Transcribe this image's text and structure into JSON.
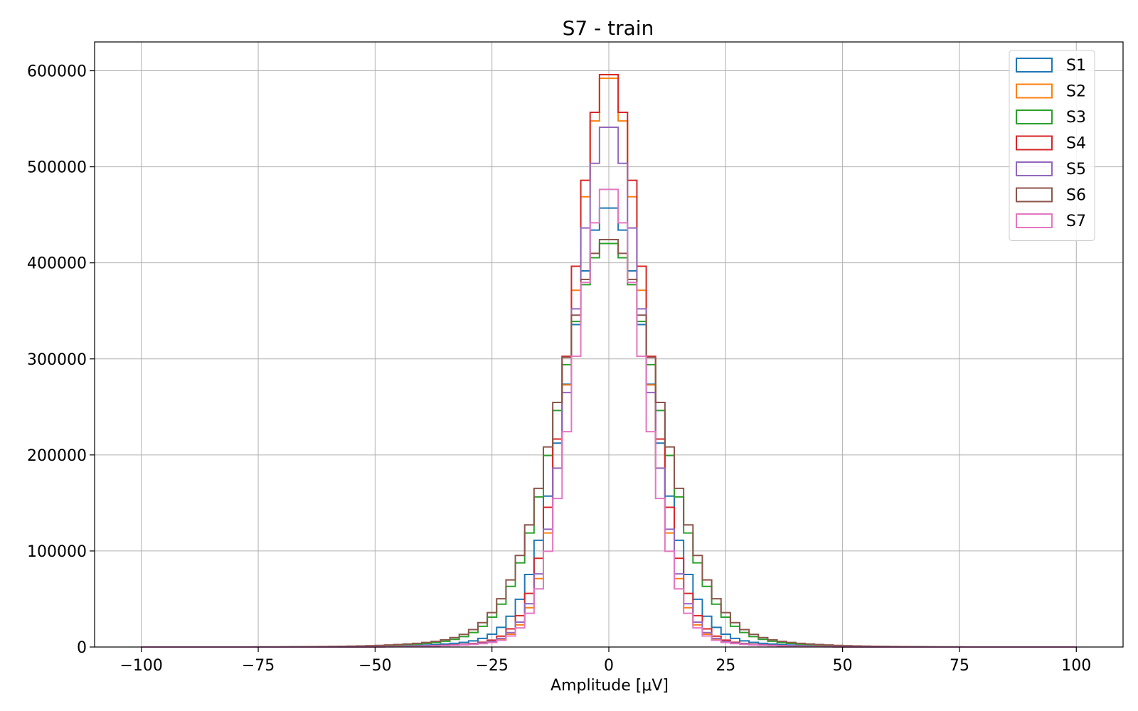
{
  "chart_data": {
    "type": "histogram",
    "title": "S7 - train",
    "xlabel": "Amplitude [μV]",
    "ylabel": "",
    "xlim": [
      -110,
      110
    ],
    "ylim": [
      0,
      630000
    ],
    "bin_width": 2,
    "x_range": [
      -100,
      100
    ],
    "xticks": [
      -100,
      -75,
      -50,
      -25,
      0,
      25,
      50,
      75,
      100
    ],
    "xtick_labels": [
      "−100",
      "−75",
      "−50",
      "−25",
      "0",
      "25",
      "50",
      "75",
      "100"
    ],
    "yticks": [
      0,
      100000,
      200000,
      300000,
      400000,
      500000,
      600000
    ],
    "ytick_labels": [
      "0",
      "100000",
      "200000",
      "300000",
      "400000",
      "500000",
      "600000"
    ],
    "grid": true,
    "legend_position": "top-right",
    "series": [
      {
        "name": "S1",
        "color": "#1f77b4",
        "peak": 460000,
        "sigma": 8.7,
        "tail_amp": 0.03,
        "tail_sigma": 20
      },
      {
        "name": "S2",
        "color": "#ff7f0e",
        "peak": 598000,
        "sigma": 7.1,
        "tail_amp": 0.02,
        "tail_sigma": 18
      },
      {
        "name": "S3",
        "color": "#2ca02c",
        "peak": 422000,
        "sigma": 10.4,
        "tail_amp": 0.04,
        "tail_sigma": 22
      },
      {
        "name": "S4",
        "color": "#d62728",
        "peak": 601000,
        "sigma": 7.6,
        "tail_amp": 0.02,
        "tail_sigma": 18
      },
      {
        "name": "S5",
        "color": "#9467bd",
        "peak": 546000,
        "sigma": 7.4,
        "tail_amp": 0.02,
        "tail_sigma": 18
      },
      {
        "name": "S6",
        "color": "#8c564b",
        "peak": 426000,
        "sigma": 10.6,
        "tail_amp": 0.05,
        "tail_sigma": 22
      },
      {
        "name": "S7",
        "color": "#e377c2",
        "peak": 481000,
        "sigma": 7.2,
        "tail_amp": 0.02,
        "tail_sigma": 18
      }
    ]
  }
}
